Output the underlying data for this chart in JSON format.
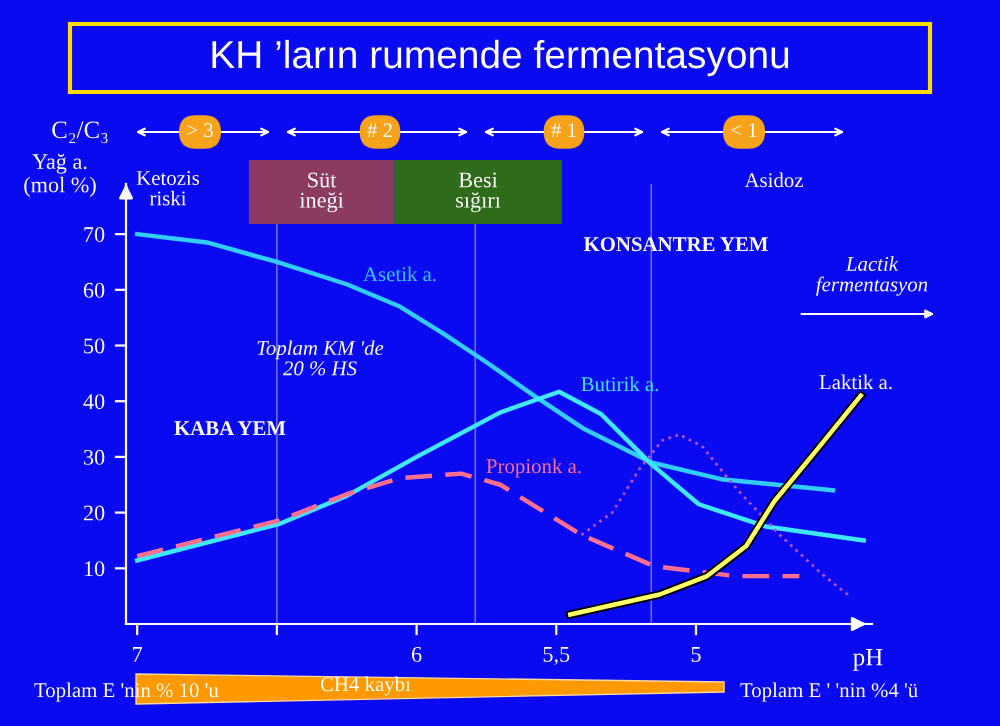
{
  "chart_data": {
    "type": "line",
    "title": "KH ’ların rumende fermentasyonu",
    "xlabel": "pH",
    "ylabel": "Yağ a.\n(mol %)",
    "xlim": [
      7.04,
      4.37
    ],
    "xticks": [
      7,
      {
        "value": 6.5,
        "label": null
      },
      6,
      {
        "value": 5.5,
        "label": "5,5"
      },
      5
    ],
    "ylim": [
      0,
      79
    ],
    "yticks": [
      10,
      20,
      30,
      40,
      50,
      60,
      70
    ],
    "marker": "none",
    "grid": false,
    "legend": false,
    "series": [
      {
        "color": "#33ccff",
        "line_style": "solid",
        "x": [
          7,
          6.75,
          6.5,
          6.25,
          6.06,
          5.9,
          5.75,
          5.58,
          5.4,
          5.16,
          4.91,
          4.51
        ],
        "values": [
          70,
          68.5,
          65,
          61,
          57,
          52,
          47,
          41,
          35,
          29,
          26,
          24
        ]
      },
      {
        "color": "#40e8ff",
        "line_style": "solid",
        "x": [
          7,
          6.49,
          6.25,
          6.0,
          5.7,
          5.49,
          5.34,
          5.16,
          4.99,
          4.75,
          4.4
        ],
        "values": [
          11.4,
          18,
          23,
          30,
          38,
          41.7,
          37.7,
          28.7,
          21.5,
          17.5,
          15
        ]
      },
      {
        "color": "#ff6f8f",
        "line_style": "dashed",
        "x": [
          7,
          6.49,
          6.25,
          6.06,
          5.84,
          5.7,
          5.41,
          5.15,
          4.86,
          4.63
        ],
        "values": [
          12.2,
          18.6,
          23.3,
          26.2,
          27,
          25,
          16,
          10.4,
          8.6,
          8.6
        ]
      },
      {
        "color": "#b050d0",
        "line_style": "dotted",
        "x": [
          5.41,
          5.3,
          5.2,
          5.12,
          5.06,
          4.98,
          4.85,
          4.7,
          4.55,
          4.45
        ],
        "values": [
          16,
          20,
          28,
          33,
          34,
          32,
          24,
          16,
          9,
          5
        ]
      },
      {
        "color": "#ffff66",
        "line_style": "solid",
        "x": [
          5.45,
          5.13,
          4.96,
          4.82,
          4.72,
          4.58,
          4.41
        ],
        "values": [
          1.7,
          5.3,
          8.6,
          14,
          22,
          30.5,
          41
        ]
      }
    ],
    "ref_lines": [
      {
        "axis": "x",
        "value": 6.5,
        "color": "#6a6aff"
      },
      {
        "axis": "x",
        "value": 5.79,
        "color": "#6a6aff"
      },
      {
        "axis": "x",
        "value": 5.16,
        "color": "#6a6aff"
      }
    ],
    "bands": [
      {
        "axis": "x",
        "from": 6.6,
        "to": 6.08,
        "label": "Süt\nineği",
        "color": "#8b3a62"
      },
      {
        "axis": "x",
        "from": 6.08,
        "to": 5.48,
        "label": "Besi\nsığırı",
        "color": "#2e6b1a"
      }
    ],
    "annotations": [
      "Asetik a.",
      "Butirik a.",
      "Propionk a.",
      "Laktik a.",
      "C₂/C₃",
      "> 3",
      "# 2",
      "# 1",
      "< 1",
      "Ketozis\nriski",
      "Asidoz",
      "KONSANTRE YEM",
      "Lactik\nfermentasyon",
      "Toplam KM 'de\n20 % HS",
      "KABA YEM",
      "Toplam E 'nin % 10 'u",
      "CH4 kaybı",
      "Toplam E ' 'nin %4 'ü"
    ]
  }
}
